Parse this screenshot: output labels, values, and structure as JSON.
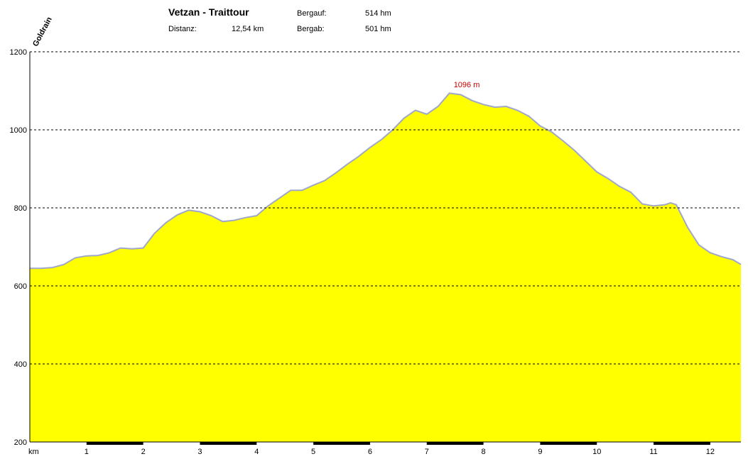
{
  "header": {
    "title": "Vetzan - Traittour",
    "distance_label": "Distanz:",
    "distance_value": "12,54 km",
    "uphill_label": "Bergauf:",
    "uphill_value": "514 hm",
    "downhill_label": "Bergab:",
    "downhill_value": "501 hm",
    "start_label": "Goldrain"
  },
  "chart_data": {
    "type": "area",
    "title": "Vetzan - Traittour",
    "xlabel": "km",
    "ylabel": "",
    "xlim": [
      0,
      12.54
    ],
    "ylim": [
      200,
      1200
    ],
    "y_ticks": [
      200,
      400,
      600,
      800,
      1000,
      1200
    ],
    "x_ticks": [
      1,
      2,
      3,
      4,
      5,
      6,
      7,
      8,
      9,
      10,
      11,
      12
    ],
    "grid": "horizontal-dashed",
    "fill_color": "#ffff00",
    "line_color": "#a0a8c8",
    "peak_annotation": {
      "x": 7.4,
      "y": 1096,
      "text": "1096 m",
      "color": "#cc0000"
    },
    "x": [
      0,
      0.2,
      0.4,
      0.6,
      0.8,
      1.0,
      1.2,
      1.4,
      1.6,
      1.8,
      2.0,
      2.2,
      2.4,
      2.6,
      2.8,
      3.0,
      3.2,
      3.4,
      3.6,
      3.8,
      4.0,
      4.2,
      4.4,
      4.6,
      4.8,
      5.0,
      5.2,
      5.4,
      5.6,
      5.8,
      6.0,
      6.2,
      6.4,
      6.6,
      6.8,
      7.0,
      7.2,
      7.4,
      7.6,
      7.8,
      8.0,
      8.2,
      8.4,
      8.6,
      8.8,
      9.0,
      9.2,
      9.4,
      9.6,
      9.8,
      10.0,
      10.2,
      10.4,
      10.6,
      10.8,
      11.0,
      11.2,
      11.3,
      11.4,
      11.6,
      11.8,
      12.0,
      12.2,
      12.4,
      12.54
    ],
    "y": [
      645,
      645,
      647,
      655,
      672,
      677,
      678,
      685,
      697,
      695,
      697,
      735,
      762,
      782,
      794,
      790,
      780,
      765,
      768,
      775,
      780,
      805,
      825,
      845,
      845,
      858,
      870,
      890,
      912,
      932,
      955,
      975,
      1000,
      1030,
      1050,
      1040,
      1060,
      1094,
      1090,
      1075,
      1065,
      1058,
      1060,
      1050,
      1035,
      1010,
      995,
      972,
      948,
      920,
      892,
      875,
      855,
      840,
      810,
      805,
      808,
      813,
      808,
      750,
      705,
      685,
      675,
      667,
      655
    ]
  }
}
